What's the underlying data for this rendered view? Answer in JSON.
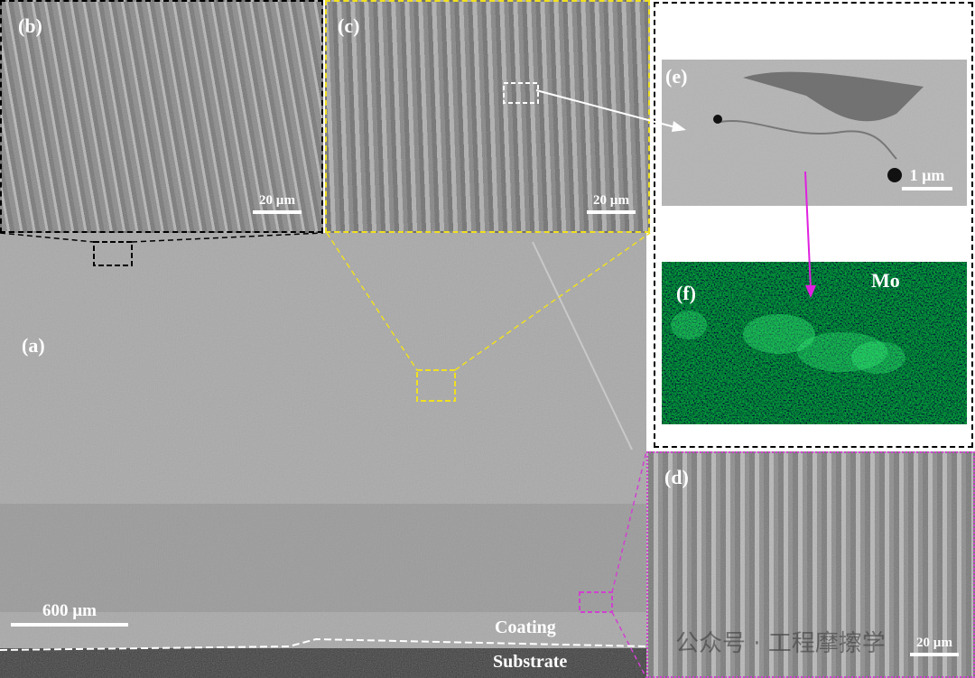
{
  "figure": {
    "panel_a": {
      "label": "(a)",
      "scale_bar": "600 µm",
      "region_coating": "Coating",
      "region_substrate": "Substrate"
    },
    "panel_b": {
      "label": "(b)",
      "scale_bar": "20 µm",
      "frame_color": "#000000"
    },
    "panel_c": {
      "label": "(c)",
      "scale_bar": "20 µm",
      "frame_color": "#f0e020"
    },
    "panel_d": {
      "label": "(d)",
      "scale_bar": "20 µm",
      "frame_color": "#d040d0"
    },
    "panel_e": {
      "label": "(e)",
      "scale_bar": "1 µm"
    },
    "panel_f": {
      "label": "(f)",
      "element": "Mo",
      "map_color": "#22c060"
    },
    "watermark": "公众号 · 工程摩擦学"
  }
}
